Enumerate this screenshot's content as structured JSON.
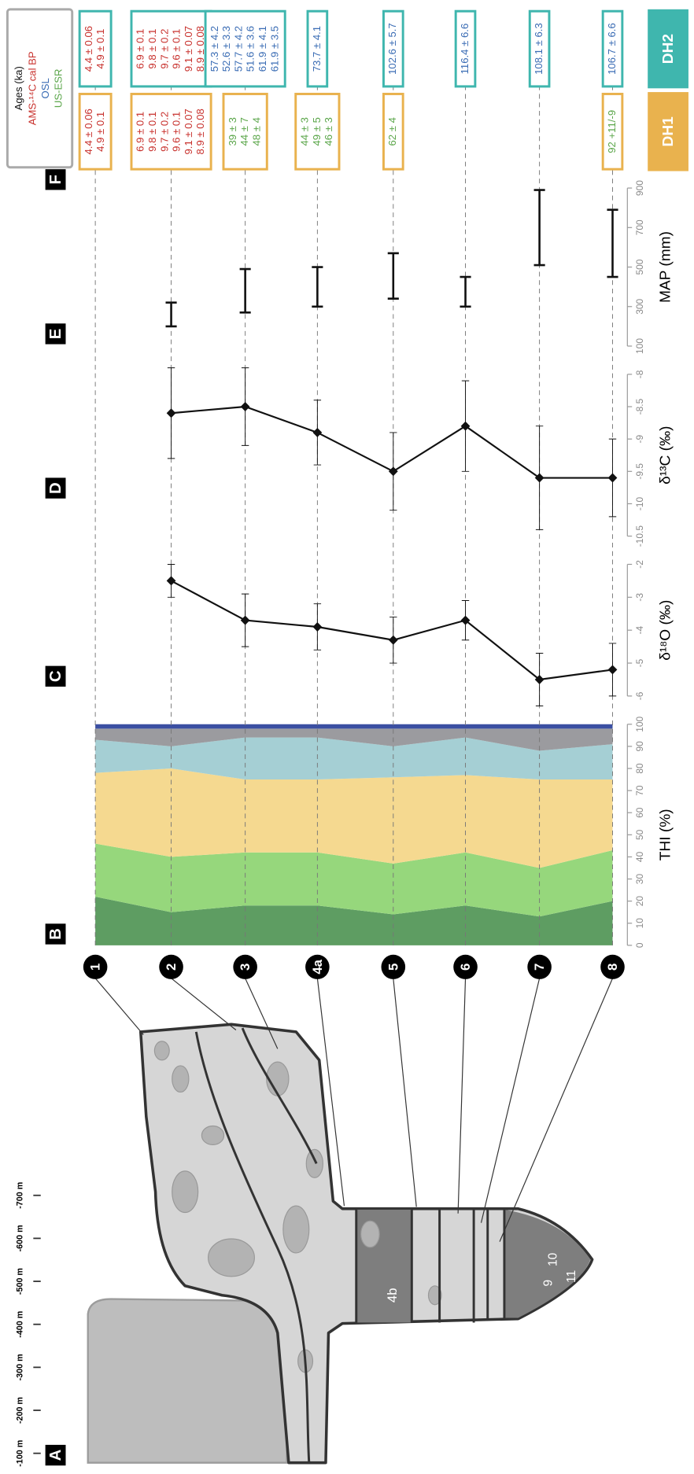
{
  "panel_labels": [
    "A",
    "B",
    "C",
    "D",
    "E",
    "F"
  ],
  "section": {
    "depth_labels": [
      "-100 m",
      "-200 m",
      "-300 m",
      "-400 m",
      "-500 m",
      "-600 m",
      "-700 m"
    ],
    "layer_labels": [
      "4b",
      "9",
      "10",
      "11"
    ]
  },
  "chart_data": [
    {
      "type": "stacked_area",
      "categories": [
        "1",
        "2",
        "3",
        "4a",
        "5",
        "6",
        "7",
        "8"
      ],
      "x_label": "THI (%)",
      "xlim": [
        0,
        100
      ],
      "xticks": [
        0,
        10,
        20,
        30,
        40,
        50,
        60,
        70,
        80,
        90,
        100
      ],
      "series": [
        {
          "color": "#5e9d62",
          "values": [
            22,
            15,
            18,
            18,
            14,
            18,
            13,
            20
          ]
        },
        {
          "color": "#96d77c",
          "values": [
            24,
            25,
            24,
            24,
            23,
            24,
            22,
            23
          ]
        },
        {
          "color": "#f5d990",
          "values": [
            32,
            40,
            33,
            33,
            39,
            35,
            40,
            32
          ]
        },
        {
          "color": "#a5cfd4",
          "values": [
            15,
            10,
            19,
            19,
            14,
            17,
            13,
            16
          ]
        },
        {
          "color": "#9b9b9f",
          "values": [
            5,
            8,
            4,
            4,
            8,
            4,
            10,
            7
          ]
        },
        {
          "color": "#3b4fa2",
          "values": [
            2,
            2,
            2,
            2,
            2,
            2,
            2,
            2
          ]
        }
      ]
    },
    {
      "type": "line",
      "x_label": "δ¹⁸O (‰)",
      "xlim": [
        -6,
        -2
      ],
      "xticks": [
        -6,
        -5,
        -4,
        -3,
        -2
      ],
      "color": "#111111",
      "values": [
        null,
        -2.5,
        -3.7,
        -3.9,
        -4.3,
        -3.7,
        -5.5,
        -5.2
      ],
      "errors": [
        null,
        0.5,
        0.8,
        0.7,
        0.7,
        0.6,
        0.8,
        0.8
      ]
    },
    {
      "type": "line",
      "x_label": "δ¹³C (‰)",
      "xlim": [
        -10.5,
        -8
      ],
      "xticks": [
        -10.5,
        -10,
        -9.5,
        -9,
        -8.5,
        -8
      ],
      "color": "#111111",
      "values": [
        null,
        -8.6,
        -8.5,
        -8.9,
        -9.5,
        -8.8,
        -9.6,
        -9.6
      ],
      "errors": [
        null,
        0.7,
        0.6,
        0.5,
        0.6,
        0.7,
        0.8,
        0.6
      ]
    },
    {
      "type": "range",
      "x_label": "MAP (mm)",
      "xlim": [
        100,
        900
      ],
      "xticks": [
        100,
        300,
        500,
        700,
        900
      ],
      "color": "#111111",
      "low": [
        null,
        200,
        270,
        300,
        340,
        300,
        510,
        450
      ],
      "high": [
        null,
        320,
        490,
        500,
        570,
        450,
        890,
        790
      ]
    }
  ],
  "ages": {
    "legend": {
      "title": "Ages (ka)",
      "items": [
        {
          "label": "AMS-¹⁴C cal BP",
          "color": "#c8302c"
        },
        {
          "label": "OSL",
          "color": "#3a6cb4"
        },
        {
          "label": "US-ESR",
          "color": "#5ba64a"
        }
      ]
    },
    "columns": [
      {
        "label": "DH1",
        "color": "#e9b24e"
      },
      {
        "label": "DH2",
        "color": "#3fb6ae"
      }
    ],
    "rows": [
      [
        {
          "method": 0,
          "lines": [
            "4.4 ± 0.06",
            "4.9 ± 0.1"
          ]
        },
        {
          "method": 0,
          "lines": [
            "4.4 ± 0.06",
            "4.9 ± 0.1"
          ]
        }
      ],
      [
        {
          "method": 0,
          "lines": [
            "6.9 ± 0.1",
            "9.8 ± 0.1",
            "9.7 ± 0.2",
            "9.6 ± 0.1",
            "9.1 ± 0.07",
            "8.9 ± 0.08"
          ]
        },
        {
          "method": 0,
          "lines": [
            "6.9 ± 0.1",
            "9.8 ± 0.1",
            "9.7 ± 0.2",
            "9.6 ± 0.1",
            "9.1 ± 0.07",
            "8.9 ± 0.08"
          ]
        }
      ],
      [
        {
          "method": 2,
          "lines": [
            "39 ± 3",
            "44 ± 7",
            "48 ± 4"
          ]
        },
        {
          "method": 1,
          "lines": [
            "57.3 ± 4.2",
            "52.6 ± 3.3",
            "57.7 ± 4.2",
            "51.6 ± 3.6",
            "61.9 ± 4.1",
            "61.9 ± 3.5"
          ]
        }
      ],
      [
        {
          "method": 2,
          "lines": [
            "44 ± 3",
            "49 ± 5",
            "46 ± 3"
          ]
        },
        {
          "method": 1,
          "lines": [
            "73.7 ± 4.1"
          ]
        }
      ],
      [
        {
          "method": 2,
          "lines": [
            "62 ± 4"
          ]
        },
        {
          "method": 1,
          "lines": [
            "102.6 ± 5.7"
          ]
        }
      ],
      [
        null,
        {
          "method": 1,
          "lines": [
            "116.4 ± 6.6"
          ]
        }
      ],
      [
        null,
        {
          "method": 1,
          "lines": [
            "108.1 ± 6.3"
          ]
        }
      ],
      [
        {
          "method": 2,
          "lines": [
            "92 +11/-9"
          ]
        },
        {
          "method": 1,
          "lines": [
            "106.7 ± 6.6"
          ]
        }
      ]
    ]
  }
}
